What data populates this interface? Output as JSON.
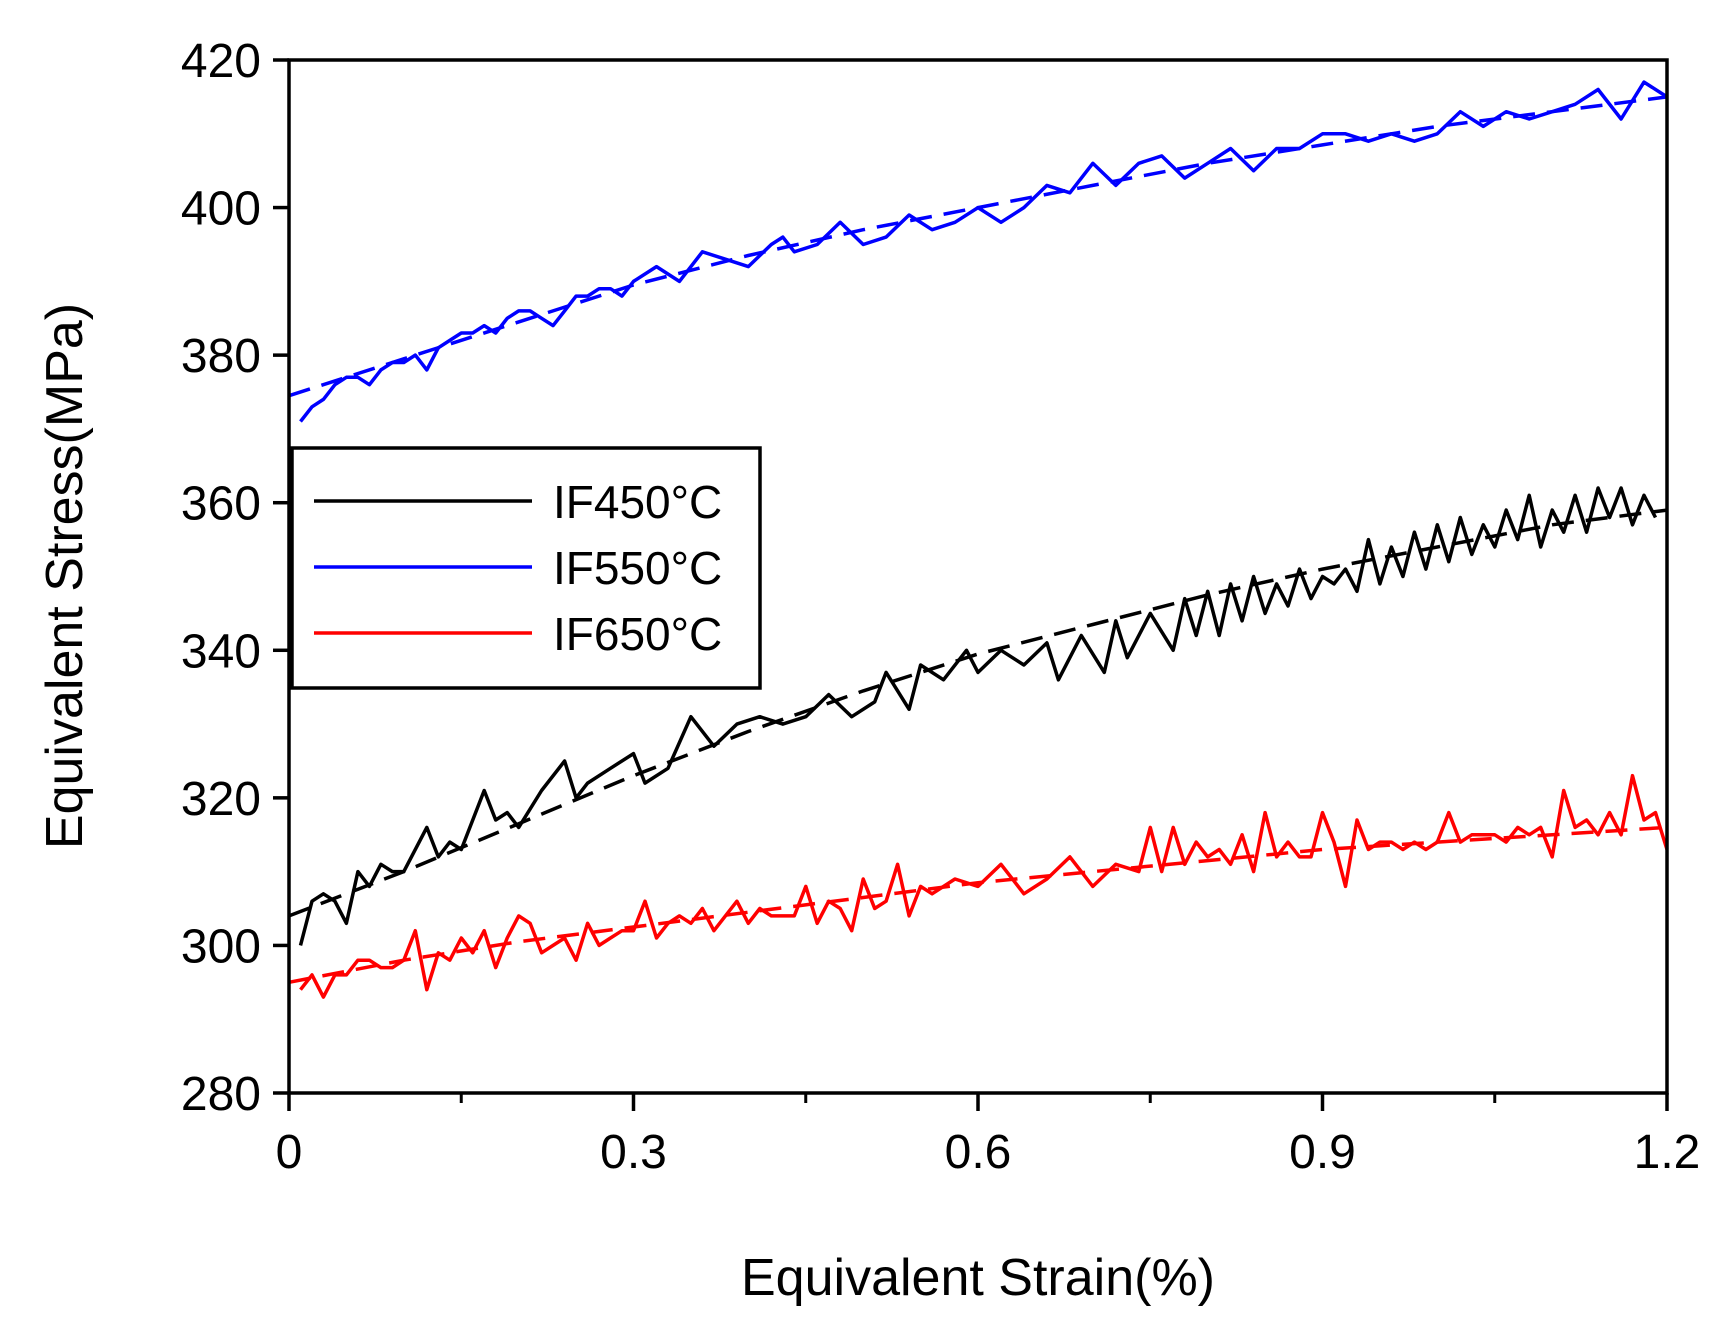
{
  "chart_data": {
    "type": "line",
    "title": "",
    "xlabel": "Equivalent Strain(%)",
    "ylabel": "Equivalent Stress(MPa)",
    "xlim": [
      0,
      1.2
    ],
    "ylim": [
      280,
      420
    ],
    "xticks": [
      0,
      0.3,
      0.6,
      0.9,
      1.2
    ],
    "xtick_labels": [
      "0",
      "0.3",
      "0.6",
      "0.9",
      "1.2"
    ],
    "xminor": [
      0.15,
      0.45,
      0.75,
      1.05
    ],
    "yticks": [
      280,
      300,
      320,
      340,
      360,
      380,
      400,
      420
    ],
    "ytick_labels": [
      "280",
      "300",
      "320",
      "340",
      "360",
      "380",
      "400",
      "420"
    ],
    "legend_position": "middle-left",
    "series": [
      {
        "name": "IF450°C",
        "color": "#000000",
        "x": [
          0.01,
          0.02,
          0.03,
          0.04,
          0.05,
          0.06,
          0.07,
          0.08,
          0.09,
          0.1,
          0.12,
          0.13,
          0.14,
          0.15,
          0.17,
          0.18,
          0.19,
          0.2,
          0.22,
          0.24,
          0.25,
          0.26,
          0.28,
          0.3,
          0.31,
          0.33,
          0.35,
          0.37,
          0.39,
          0.41,
          0.43,
          0.45,
          0.47,
          0.49,
          0.51,
          0.52,
          0.54,
          0.55,
          0.57,
          0.59,
          0.6,
          0.62,
          0.64,
          0.66,
          0.67,
          0.69,
          0.71,
          0.72,
          0.73,
          0.75,
          0.77,
          0.78,
          0.79,
          0.8,
          0.81,
          0.82,
          0.83,
          0.84,
          0.85,
          0.86,
          0.87,
          0.88,
          0.89,
          0.9,
          0.91,
          0.92,
          0.93,
          0.94,
          0.95,
          0.96,
          0.97,
          0.98,
          0.99,
          1.0,
          1.01,
          1.02,
          1.03,
          1.04,
          1.05,
          1.06,
          1.07,
          1.08,
          1.09,
          1.1,
          1.11,
          1.12,
          1.13,
          1.14,
          1.15,
          1.16,
          1.17,
          1.18,
          1.19
        ],
        "y": [
          300,
          306,
          307,
          306,
          303,
          310,
          308,
          311,
          310,
          310,
          316,
          312,
          314,
          313,
          321,
          317,
          318,
          316,
          321,
          325,
          320,
          322,
          324,
          326,
          322,
          324,
          331,
          327,
          330,
          331,
          330,
          331,
          334,
          331,
          333,
          337,
          332,
          338,
          336,
          340,
          337,
          340,
          338,
          341,
          336,
          342,
          337,
          344,
          339,
          345,
          340,
          347,
          342,
          348,
          342,
          349,
          344,
          350,
          345,
          349,
          346,
          351,
          347,
          350,
          349,
          351,
          348,
          355,
          349,
          354,
          350,
          356,
          351,
          357,
          352,
          358,
          353,
          357,
          354,
          359,
          355,
          361,
          354,
          359,
          356,
          361,
          356,
          362,
          358,
          362,
          357,
          361,
          358
        ],
        "fit_x": [
          0.0,
          0.1,
          0.2,
          0.3,
          0.4,
          0.5,
          0.6,
          0.7,
          0.8,
          0.9,
          1.0,
          1.1,
          1.2
        ],
        "fit_y": [
          304,
          310,
          316.5,
          323,
          329,
          334.5,
          339.5,
          343.5,
          347.5,
          351,
          354,
          357,
          359
        ]
      },
      {
        "name": "IF550°C",
        "color": "#0000ff",
        "x": [
          0.01,
          0.02,
          0.03,
          0.04,
          0.05,
          0.06,
          0.07,
          0.08,
          0.09,
          0.1,
          0.11,
          0.12,
          0.13,
          0.14,
          0.15,
          0.16,
          0.17,
          0.18,
          0.19,
          0.2,
          0.21,
          0.22,
          0.23,
          0.24,
          0.25,
          0.26,
          0.27,
          0.28,
          0.29,
          0.3,
          0.32,
          0.34,
          0.36,
          0.38,
          0.4,
          0.42,
          0.43,
          0.44,
          0.46,
          0.48,
          0.5,
          0.52,
          0.54,
          0.56,
          0.58,
          0.6,
          0.62,
          0.64,
          0.66,
          0.68,
          0.7,
          0.72,
          0.74,
          0.76,
          0.78,
          0.8,
          0.82,
          0.84,
          0.86,
          0.88,
          0.9,
          0.92,
          0.94,
          0.96,
          0.98,
          1.0,
          1.02,
          1.04,
          1.06,
          1.08,
          1.1,
          1.12,
          1.14,
          1.16,
          1.18,
          1.2
        ],
        "y": [
          371,
          373,
          374,
          376,
          377,
          377,
          376,
          378,
          379,
          379,
          380,
          378,
          381,
          382,
          383,
          383,
          384,
          383,
          385,
          386,
          386,
          385,
          384,
          386,
          388,
          388,
          389,
          389,
          388,
          390,
          392,
          390,
          394,
          393,
          392,
          395,
          396,
          394,
          395,
          398,
          395,
          396,
          399,
          397,
          398,
          400,
          398,
          400,
          403,
          402,
          406,
          403,
          406,
          407,
          404,
          406,
          408,
          405,
          408,
          408,
          410,
          410,
          409,
          410,
          409,
          410,
          413,
          411,
          413,
          412,
          413,
          414,
          416,
          412,
          417,
          415
        ],
        "fit_x": [
          0.0,
          0.1,
          0.2,
          0.3,
          0.4,
          0.5,
          0.6,
          0.7,
          0.8,
          0.9,
          1.0,
          1.1,
          1.2
        ],
        "fit_y": [
          374.5,
          379.5,
          384.5,
          389.5,
          393.5,
          397,
          400,
          403,
          406,
          408.5,
          411,
          413,
          415
        ]
      },
      {
        "name": "IF650°C",
        "color": "#ff0000",
        "x": [
          0.01,
          0.02,
          0.03,
          0.04,
          0.05,
          0.06,
          0.07,
          0.08,
          0.09,
          0.1,
          0.11,
          0.12,
          0.13,
          0.14,
          0.15,
          0.16,
          0.17,
          0.18,
          0.19,
          0.2,
          0.21,
          0.22,
          0.23,
          0.24,
          0.25,
          0.26,
          0.27,
          0.28,
          0.29,
          0.3,
          0.31,
          0.32,
          0.33,
          0.34,
          0.35,
          0.36,
          0.37,
          0.38,
          0.39,
          0.4,
          0.41,
          0.42,
          0.43,
          0.44,
          0.45,
          0.46,
          0.47,
          0.48,
          0.49,
          0.5,
          0.51,
          0.52,
          0.53,
          0.54,
          0.55,
          0.56,
          0.58,
          0.6,
          0.62,
          0.64,
          0.66,
          0.68,
          0.7,
          0.72,
          0.74,
          0.75,
          0.76,
          0.77,
          0.78,
          0.79,
          0.8,
          0.81,
          0.82,
          0.83,
          0.84,
          0.85,
          0.86,
          0.87,
          0.88,
          0.89,
          0.9,
          0.91,
          0.92,
          0.93,
          0.94,
          0.95,
          0.96,
          0.97,
          0.98,
          0.99,
          1.0,
          1.01,
          1.02,
          1.03,
          1.04,
          1.05,
          1.06,
          1.07,
          1.08,
          1.09,
          1.1,
          1.11,
          1.12,
          1.13,
          1.14,
          1.15,
          1.16,
          1.17,
          1.18,
          1.19,
          1.2
        ],
        "y": [
          294,
          296,
          293,
          296,
          296,
          298,
          298,
          297,
          297,
          298,
          302,
          294,
          299,
          298,
          301,
          299,
          302,
          297,
          301,
          304,
          303,
          299,
          300,
          301,
          298,
          303,
          300,
          301,
          302,
          302,
          306,
          301,
          303,
          304,
          303,
          305,
          302,
          304,
          306,
          303,
          305,
          304,
          304,
          304,
          308,
          303,
          306,
          305,
          302,
          309,
          305,
          306,
          311,
          304,
          308,
          307,
          309,
          308,
          311,
          307,
          309,
          312,
          308,
          311,
          310,
          316,
          310,
          316,
          311,
          314,
          312,
          313,
          311,
          315,
          310,
          318,
          312,
          314,
          312,
          312,
          318,
          314,
          308,
          317,
          313,
          314,
          314,
          313,
          314,
          313,
          314,
          318,
          314,
          315,
          315,
          315,
          314,
          316,
          315,
          316,
          312,
          321,
          316,
          317,
          315,
          318,
          315,
          323,
          317,
          318,
          313
        ],
        "fit_x": [
          0.0,
          0.1,
          0.2,
          0.3,
          0.4,
          0.5,
          0.6,
          0.7,
          0.8,
          0.9,
          1.0,
          1.1,
          1.2
        ],
        "fit_y": [
          295,
          298,
          300.5,
          302.5,
          304.5,
          306.5,
          308.5,
          310,
          311.5,
          313,
          314,
          315,
          316
        ]
      }
    ]
  }
}
